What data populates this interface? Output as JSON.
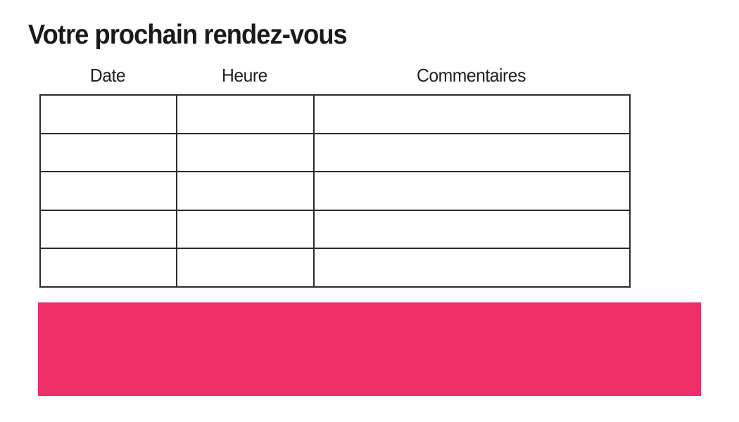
{
  "page": {
    "title": "Votre prochain rendez-vous"
  },
  "table": {
    "columns": [
      {
        "label": "Date"
      },
      {
        "label": "Heure"
      },
      {
        "label": "Commentaires"
      }
    ],
    "rows": [
      [
        "",
        "",
        ""
      ],
      [
        "",
        "",
        ""
      ],
      [
        "",
        "",
        ""
      ],
      [
        "",
        "",
        ""
      ],
      [
        "",
        "",
        ""
      ]
    ]
  },
  "banner": {
    "label": ""
  },
  "colors": {
    "accent_pink": "#ED2E67",
    "table_border": "#2b2b2b",
    "text": "#1a1a1a"
  }
}
